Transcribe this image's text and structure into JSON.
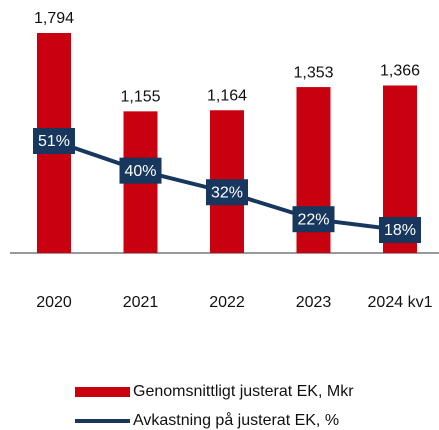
{
  "chart_data": {
    "type": "combo",
    "categories": [
      "2020",
      "2021",
      "2022",
      "2023",
      "2024 kv1"
    ],
    "series": [
      {
        "name": "Genomsnittligt justerat EK, Mkr",
        "type": "bar",
        "color": "#c8000f",
        "values": [
          1794,
          1155,
          1164,
          1353,
          1366
        ],
        "value_labels": [
          "1,794",
          "1,155",
          "1,164",
          "1,353",
          "1,366"
        ]
      },
      {
        "name": "Avkastning på justerat EK, %",
        "type": "line",
        "color": "#17375e",
        "values": [
          51,
          40,
          32,
          22,
          18
        ],
        "value_labels": [
          "51%",
          "40%",
          "32%",
          "22%",
          "18%"
        ]
      }
    ]
  }
}
